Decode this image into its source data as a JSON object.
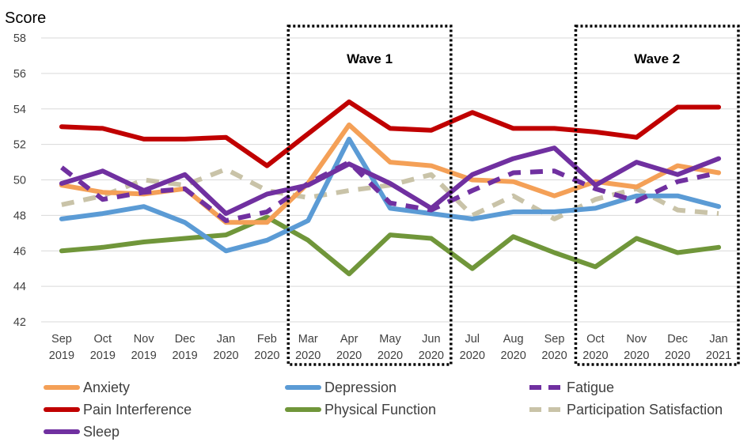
{
  "chart_data": {
    "type": "line",
    "title": "",
    "ylabel": "Score",
    "xlabel": "",
    "ylim": [
      42,
      58
    ],
    "yticks": [
      42,
      44,
      46,
      48,
      50,
      52,
      54,
      56,
      58
    ],
    "grid": "horizontal",
    "categories": [
      [
        "Sep",
        "2019"
      ],
      [
        "Oct",
        "2019"
      ],
      [
        "Nov",
        "2019"
      ],
      [
        "Dec",
        "2019"
      ],
      [
        "Jan",
        "2020"
      ],
      [
        "Feb",
        "2020"
      ],
      [
        "Mar",
        "2020"
      ],
      [
        "Apr",
        "2020"
      ],
      [
        "May",
        "2020"
      ],
      [
        "Jun",
        "2020"
      ],
      [
        "Jul",
        "2020"
      ],
      [
        "Aug",
        "2020"
      ],
      [
        "Sep",
        "2020"
      ],
      [
        "Oct",
        "2020"
      ],
      [
        "Nov",
        "2020"
      ],
      [
        "Dec",
        "2020"
      ],
      [
        "Jan",
        "2021"
      ]
    ],
    "series": [
      {
        "name": "Participation Satisfaction",
        "color": "#C9C3A8",
        "dash": true,
        "values": [
          48.6,
          49.1,
          50.0,
          49.7,
          50.6,
          49.4,
          49.0,
          49.4,
          49.7,
          50.3,
          48.0,
          49.1,
          47.8,
          48.9,
          49.5,
          48.3,
          48.1
        ]
      },
      {
        "name": "Physical Function",
        "color": "#70963A",
        "dash": false,
        "values": [
          46.0,
          46.2,
          46.5,
          46.7,
          46.9,
          47.9,
          46.6,
          44.7,
          46.9,
          46.7,
          45.0,
          46.8,
          45.9,
          45.1,
          46.7,
          45.9,
          46.2
        ]
      },
      {
        "name": "Depression",
        "color": "#5B9BD5",
        "dash": false,
        "values": [
          47.8,
          48.1,
          48.5,
          47.6,
          46.0,
          46.6,
          47.7,
          52.3,
          48.4,
          48.1,
          47.8,
          48.2,
          48.2,
          48.4,
          49.1,
          49.1,
          48.5
        ]
      },
      {
        "name": "Anxiety",
        "color": "#F4A057",
        "dash": false,
        "values": [
          49.7,
          49.3,
          49.2,
          49.5,
          47.6,
          47.6,
          49.8,
          53.1,
          51.0,
          50.8,
          50.0,
          49.9,
          49.1,
          49.9,
          49.6,
          50.8,
          50.4
        ]
      },
      {
        "name": "Fatigue",
        "color": "#7030A0",
        "dash": true,
        "values": [
          50.7,
          48.9,
          49.3,
          49.5,
          47.7,
          48.2,
          49.8,
          51.0,
          48.7,
          48.3,
          49.4,
          50.4,
          50.5,
          49.5,
          48.8,
          49.9,
          50.4
        ]
      },
      {
        "name": "Sleep",
        "color": "#7030A0",
        "dash": false,
        "values": [
          49.8,
          50.5,
          49.4,
          50.3,
          48.1,
          49.2,
          49.7,
          50.9,
          49.8,
          48.4,
          50.3,
          51.2,
          51.8,
          49.7,
          51.0,
          50.3,
          51.2
        ]
      },
      {
        "name": "Pain Interference",
        "color": "#C00000",
        "dash": false,
        "values": [
          53.0,
          52.9,
          52.3,
          52.3,
          52.4,
          50.8,
          52.6,
          54.4,
          52.9,
          52.8,
          53.8,
          52.9,
          52.9,
          52.7,
          52.4,
          54.1,
          54.1
        ]
      }
    ],
    "annotations": [
      {
        "label": "Wave 1",
        "from": "Mar 2020",
        "to": "Jun 2020"
      },
      {
        "label": "Wave 2",
        "from": "Oct 2020",
        "to": "Jan 2021"
      }
    ],
    "legend": {
      "placement": "bottom",
      "items": [
        {
          "name": "Anxiety",
          "color": "#F4A057",
          "dash": false
        },
        {
          "name": "Depression",
          "color": "#5B9BD5",
          "dash": false
        },
        {
          "name": "Fatigue",
          "color": "#7030A0",
          "dash": true
        },
        {
          "name": "Pain Interference",
          "color": "#C00000",
          "dash": false
        },
        {
          "name": "Physical Function",
          "color": "#70963A",
          "dash": false
        },
        {
          "name": "Participation Satisfaction",
          "color": "#C9C3A8",
          "dash": true
        },
        {
          "name": "Sleep",
          "color": "#7030A0",
          "dash": false
        }
      ]
    }
  }
}
